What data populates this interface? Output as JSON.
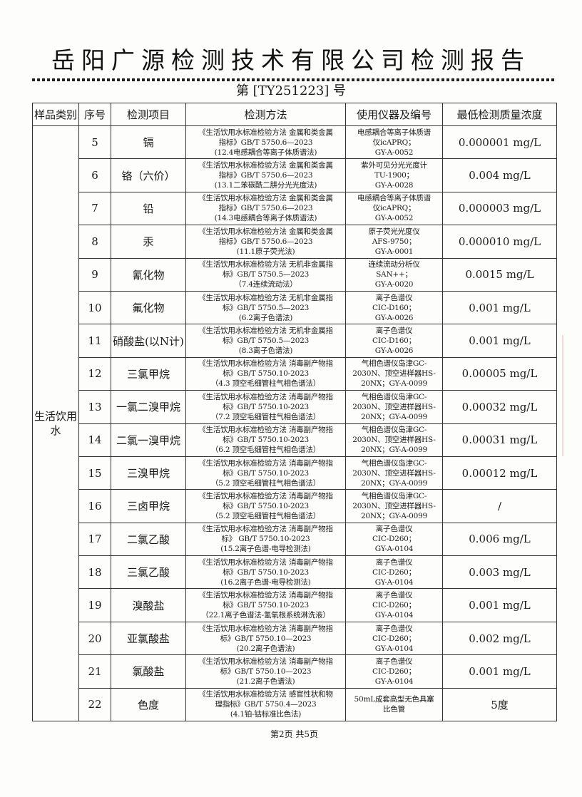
{
  "title": "岳阳广源检测技术有限公司检测报告",
  "report_no": "第 [TY251223] 号",
  "headers": [
    "样品类别",
    "序号",
    "检测项目",
    "检测方法",
    "使用仪器及编号",
    "最低检测质量浓度"
  ],
  "category": "生活饮用水",
  "rows": [
    {
      "seq": "5",
      "item": "镉",
      "method": [
        "《生活饮用水标准检验方法 金属和类金属",
        "指标》GB/T 5750.6—2023",
        "(12.4电感耦合等离子体质谱法)"
      ],
      "instrument": [
        "电感耦合等离子体质谱",
        "仪icAPRQ；",
        "GY-A-0052"
      ],
      "conc": "0.000001 mg/L"
    },
    {
      "seq": "6",
      "item": "铬（六价）",
      "method": [
        "《生活饮用水标准检验方法 金属和类金属",
        "指标》GB/T 5750.6—2023",
        "(13.1二苯碳酰二肼分光光度法)"
      ],
      "instrument": [
        "紫外可见分光光度计",
        "TU-1900；",
        "GY-A-0028"
      ],
      "conc": "0.004 mg/L"
    },
    {
      "seq": "7",
      "item": "铅",
      "method": [
        "《生活饮用水标准检验方法 金属和类金属",
        "指标》GB/T 5750.6—2023",
        "(14.3电感耦合等离子体质谱法)"
      ],
      "instrument": [
        "电感耦合等离子体质谱",
        "仪icAPRQ；",
        "GY-A-0052"
      ],
      "conc": "0.000003 mg/L"
    },
    {
      "seq": "8",
      "item": "汞",
      "method": [
        "《生活饮用水标准检验方法 金属和类金属",
        "指标》GB/T 5750.6—2023",
        "(11.1原子荧光法)"
      ],
      "instrument": [
        "原子荧光光度仪",
        "AFS-9750；",
        "GY-A-0001"
      ],
      "conc": "0.000010 mg/L"
    },
    {
      "seq": "9",
      "item": "氰化物",
      "method": [
        "《生活饮用水标准检验方法 无机非金属指",
        "标》GB/T 5750.5—2023",
        "（7.4连续流动法）"
      ],
      "instrument": [
        "连续流动分析仪",
        "SAN++；",
        "GY-A-0020"
      ],
      "conc": "0.0015 mg/L"
    },
    {
      "seq": "10",
      "item": "氟化物",
      "method": [
        "《生活饮用水标准检验方法 无机非金属指",
        "标》GB/T 5750.5—2023",
        "(6.2离子色谱法)"
      ],
      "instrument": [
        "离子色谱仪",
        "CIC-D160；",
        "GY-A-0026"
      ],
      "conc": "0.001 mg/L"
    },
    {
      "seq": "11",
      "item": "硝酸盐(以N计)",
      "method": [
        "《生活饮用水标准检验方法 无机非金属指",
        "标》GB/T 5750.5—2023",
        "(8.3离子色谱法)"
      ],
      "instrument": [
        "离子色谱仪",
        "CIC-D160；",
        "GY-A-0026"
      ],
      "conc": "0.001 mg/L"
    },
    {
      "seq": "12",
      "item": "三氯甲烷",
      "method": [
        "《生活饮用水标准检验方法 消毒副产物指",
        "标》GB/T 5750.10-2023",
        "（4.3 顶空毛细管柱气相色谱法）"
      ],
      "instrument": [
        "气相色谱仪岛津GC-",
        "2030N、顶空进样器HS-",
        "20NX；GY-A-0099"
      ],
      "conc": "0.00005 mg/L"
    },
    {
      "seq": "13",
      "item": "一氯二溴甲烷",
      "method": [
        "《生活饮用水标准检验方法 消毒副产物指",
        "标》GB/T 5750.10-2023",
        "（7.2 顶空毛细管柱气相色谱法）"
      ],
      "instrument": [
        "气相色谱仪岛津GC-",
        "2030N、顶空进样器HS-",
        "20NX；GY-A-0099"
      ],
      "conc": "0.00032 mg/L"
    },
    {
      "seq": "14",
      "item": "二氯一溴甲烷",
      "method": [
        "《生活饮用水标准检验方法 消毒副产物指",
        "标》GB/T 5750.10-2023",
        "（6.2 顶空毛细管柱气相色谱法）"
      ],
      "instrument": [
        "气相色谱仪岛津GC-",
        "2030N、顶空进样器HS-",
        "20NX；GY-A-0099"
      ],
      "conc": "0.00031 mg/L"
    },
    {
      "seq": "15",
      "item": "三溴甲烷",
      "method": [
        "《生活饮用水标准检验方法 消毒副产物指",
        "标》GB/T 5750.10-2023",
        "（5.2 顶空毛细管柱气相色谱法）"
      ],
      "instrument": [
        "气相色谱仪岛津GC-",
        "2030N、顶空进样器HS-",
        "20NX；GY-A-0099"
      ],
      "conc": "0.00012 mg/L"
    },
    {
      "seq": "16",
      "item": "三卤甲烷",
      "method": [
        "《生活饮用水标准检验方法 消毒副产物指",
        "标》GB/T 5750.10-2023",
        "（5.2 顶空毛细管柱气相色谱法）"
      ],
      "instrument": [
        "气相色谱仪岛津GC-",
        "2030N、顶空进样器HS-",
        "20NX；GY-A-0099"
      ],
      "conc": "/"
    },
    {
      "seq": "17",
      "item": "二氯乙酸",
      "method": [
        "《生活饮用水标准检验方法 消毒副产物指",
        "标》 GB/T 5750.10-2023",
        "(15.2离子色谱-电导检测法)"
      ],
      "instrument": [
        "离子色谱仪",
        "CIC-D260；",
        "GY-A-0104"
      ],
      "conc": "0.006 mg/L"
    },
    {
      "seq": "18",
      "item": "三氯乙酸",
      "method": [
        "《生活饮用水标准检验方法 消毒副产物指",
        "标》GB/T 5750.10-2023",
        "(16.2离子色谱-电导检测法)"
      ],
      "instrument": [
        "离子色谱仪",
        "CIC-D260；",
        "GY-A-0104"
      ],
      "conc": "0.003 mg/L"
    },
    {
      "seq": "19",
      "item": "溴酸盐",
      "method": [
        "《生活饮用水标准检验方法 消毒副产物指",
        "标》GB/T 5750.10-2023",
        "（22.1离子色谱法-氢氧根系统淋洗液）"
      ],
      "instrument": [
        "离子色谱仪",
        "CIC-D260；",
        "GY-A-0104"
      ],
      "conc": "0.001 mg/L"
    },
    {
      "seq": "20",
      "item": "亚氯酸盐",
      "method": [
        "《生活饮用水标准检验方法 消毒副产物指",
        "标》GB/T 5750.10—2023",
        "(20.2离子色谱法)"
      ],
      "instrument": [
        "离子色谱仪",
        "CIC-D260；",
        "GY-A-0104"
      ],
      "conc": "0.002 mg/L"
    },
    {
      "seq": "21",
      "item": "氯酸盐",
      "method": [
        "《生活饮用水标准检验方法 消毒副产物指",
        "标》GB/T 5750.10—2023",
        "(21.2离子色谱法)"
      ],
      "instrument": [
        "离子色谱仪",
        "CIC-D260；",
        "GY-A-0104"
      ],
      "conc": "0.001 mg/L"
    },
    {
      "seq": "22",
      "item": "色度",
      "method": [
        "《生活饮用水标准检验方法 感官性状和物",
        "理指标》GB/T 5750.4—2023",
        "(4.1铂-钴标准比色法)"
      ],
      "instrument": [
        "50mL成套高型无色具塞",
        "比色管"
      ],
      "conc": "5度"
    }
  ],
  "footer": "第2页  共5页"
}
